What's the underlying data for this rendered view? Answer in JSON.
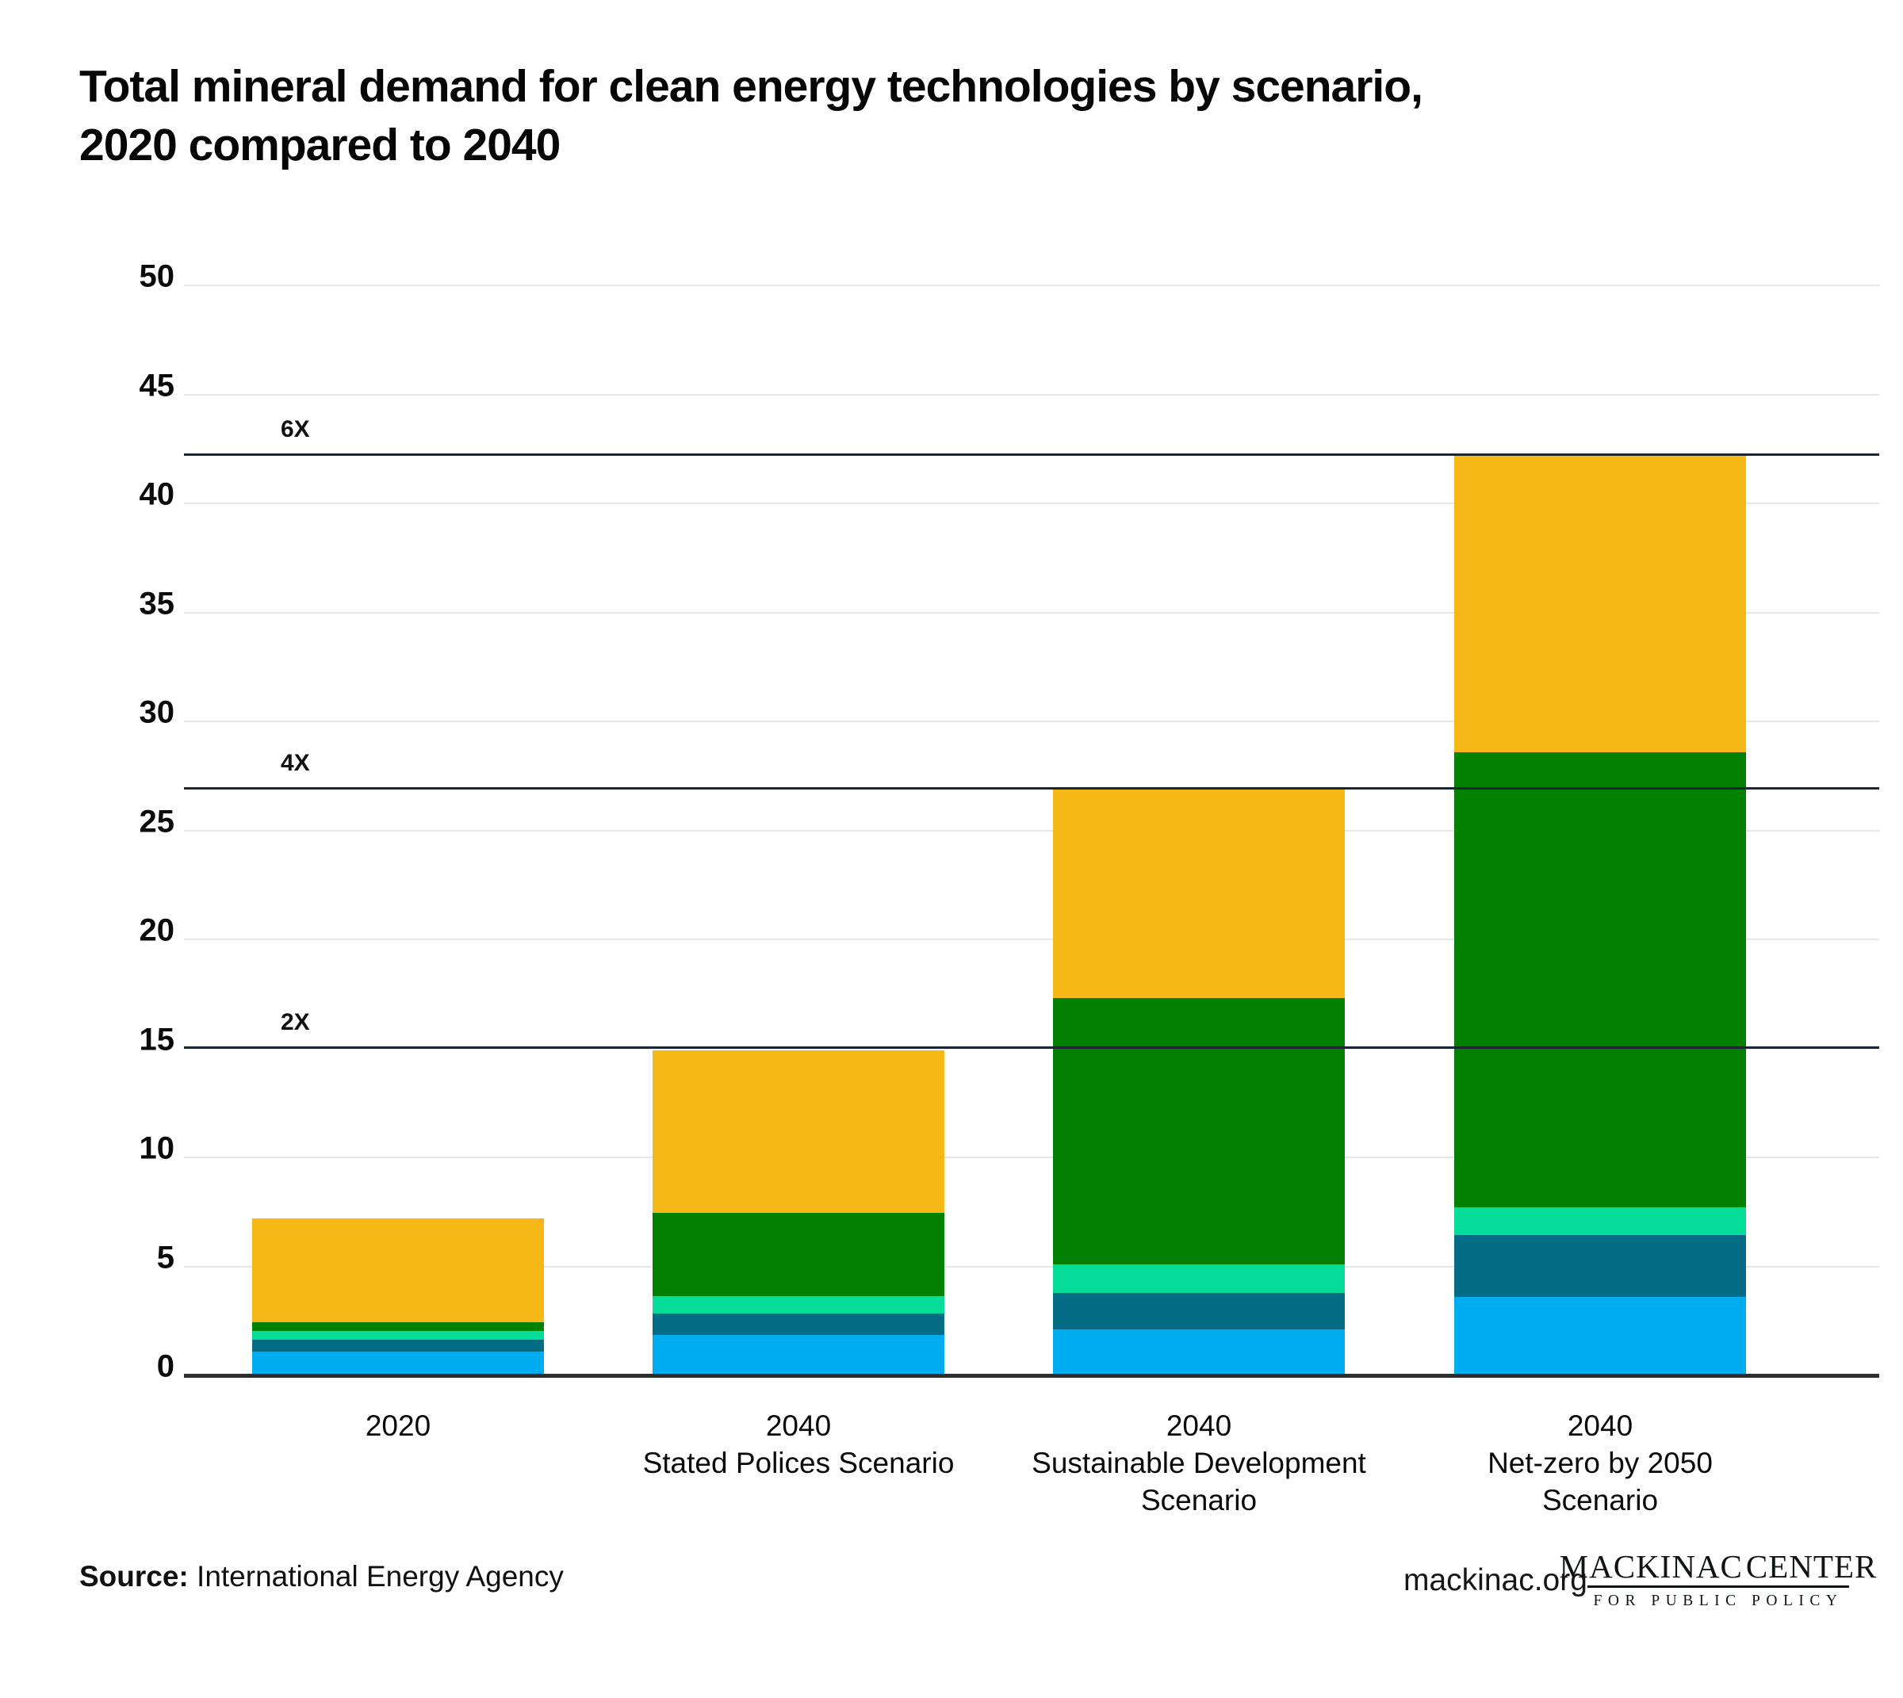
{
  "title": {
    "line1": "Total mineral demand for clean energy technologies by scenario,",
    "line2": "2020 compared to 2040"
  },
  "chart_data": {
    "type": "bar",
    "stacked": true,
    "title": "Total mineral demand for clean energy technologies by scenario, 2020 compared to 2040",
    "categories": [
      [
        "2020"
      ],
      [
        "2040",
        "Stated Polices Scenario"
      ],
      [
        "2040",
        "Sustainable Development",
        "Scenario"
      ],
      [
        "2040",
        "Net-zero by 2050",
        "Scenario"
      ]
    ],
    "series": [
      {
        "name": "segment-light-blue",
        "color": "#00ACF0",
        "values": [
          1.1,
          1.85,
          2.1,
          3.6
        ]
      },
      {
        "name": "segment-dark-teal",
        "color": "#056C86",
        "values": [
          0.55,
          1.0,
          1.7,
          2.85
        ]
      },
      {
        "name": "segment-mint-green",
        "color": "#03DD98",
        "values": [
          0.4,
          0.8,
          1.3,
          1.25
        ]
      },
      {
        "name": "segment-dark-green",
        "color": "#018001",
        "values": [
          0.4,
          3.8,
          12.2,
          20.9
        ]
      },
      {
        "name": "segment-gold",
        "color": "#F6B817",
        "values": [
          4.75,
          7.45,
          9.6,
          13.6
        ]
      }
    ],
    "totals": [
      7.2,
      14.9,
      26.9,
      42.2
    ],
    "reference_lines": [
      {
        "label": "2X",
        "value": 15.05
      },
      {
        "label": "4X",
        "value": 26.95
      },
      {
        "label": "6X",
        "value": 42.25
      }
    ],
    "y_ticks": [
      0,
      5,
      10,
      15,
      20,
      25,
      30,
      35,
      40,
      45,
      50
    ],
    "ylim": [
      0,
      50
    ],
    "grid": true,
    "legend_position": "none",
    "xlabel": "",
    "ylabel": ""
  },
  "footer": {
    "source_label": "Source:",
    "source_text": " International Energy Agency",
    "site": "mackinac.org",
    "logo": {
      "word_left": "MACKINAC",
      "word_right": "CENTER",
      "tagline": "FOR PUBLIC POLICY",
      "icon_color": "#1D7285"
    }
  }
}
